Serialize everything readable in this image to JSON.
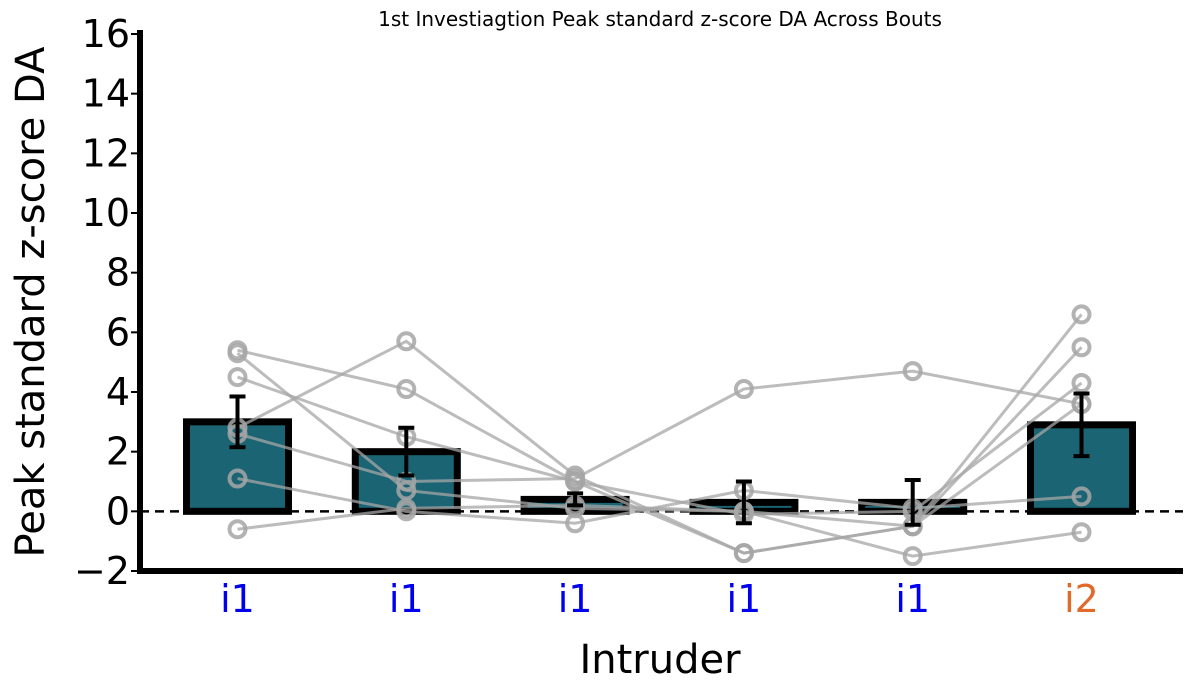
{
  "chart_data": {
    "type": "bar",
    "title": "1st Investiagtion Peak standard z-score DA Across Bouts",
    "xlabel": "Intruder",
    "ylabel": "Peak standard z-score DA",
    "ylim": [
      -2,
      16
    ],
    "yticks": [
      -2,
      0,
      2,
      4,
      6,
      8,
      10,
      12,
      14,
      16
    ],
    "ytick_labels": [
      "−2",
      "0",
      "2",
      "4",
      "6",
      "8",
      "10",
      "12",
      "14",
      "16"
    ],
    "categories": [
      "i1",
      "i1",
      "i1",
      "i1",
      "i1",
      "i2"
    ],
    "category_colors": [
      "#0000ee",
      "#0000ee",
      "#0000ee",
      "#0000ee",
      "#0000ee",
      "#e06a2c"
    ],
    "values": [
      3.0,
      2.0,
      0.4,
      0.3,
      0.3,
      2.9
    ],
    "errors": [
      0.85,
      0.8,
      0.2,
      0.7,
      0.75,
      1.05
    ],
    "bar_color": "#1a6473",
    "bar_edge_color": "#000000",
    "reference_line": {
      "y": 0,
      "style": "dashed",
      "color": "#000000"
    },
    "subjects": [
      {
        "values": [
          5.4,
          4.1,
          1.0,
          -1.4,
          -0.5,
          5.5
        ]
      },
      {
        "values": [
          5.3,
          0.7,
          0.1,
          0.0,
          -0.5,
          6.6
        ]
      },
      {
        "values": [
          4.5,
          2.5,
          1.0,
          -0.1,
          0.0,
          4.3
        ]
      },
      {
        "values": [
          2.8,
          5.7,
          1.2,
          -1.4,
          -0.5,
          3.6
        ]
      },
      {
        "values": [
          2.6,
          1.0,
          1.1,
          4.1,
          4.7,
          3.6
        ]
      },
      {
        "values": [
          1.1,
          0.0,
          -0.4,
          0.7,
          0.1,
          0.5
        ]
      },
      {
        "values": [
          -0.6,
          0.1,
          0.2,
          0.0,
          -1.5,
          -0.7
        ]
      }
    ],
    "subject_color": "#a6a6a6",
    "grid": false,
    "legend": "none"
  }
}
